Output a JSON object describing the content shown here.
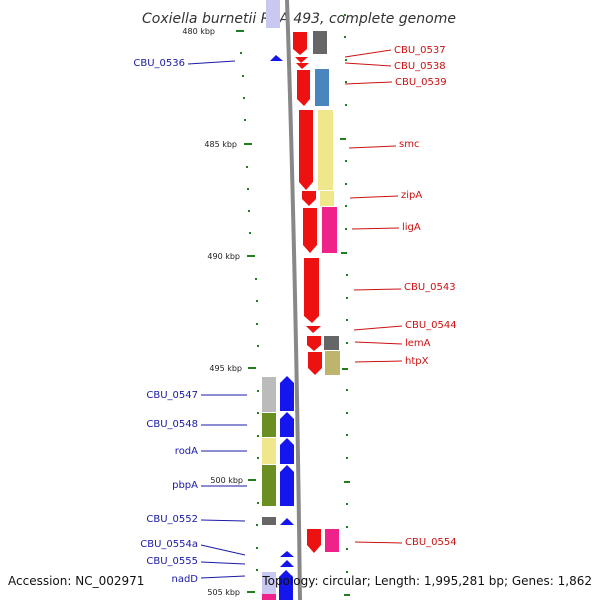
{
  "title": "Coxiella burnetii RSA 493, complete genome",
  "footer": {
    "accession": "Accession: NC_002971",
    "summary": "Topology: circular; Length: 1,995,281 bp; Genes: 1,862"
  },
  "scale": {
    "ticks": [
      "480 kbp",
      "485 kbp",
      "490 kbp",
      "495 kbp",
      "500 kbp",
      "505 kbp"
    ]
  },
  "colors": {
    "forward_strand": "#ee1111",
    "reverse_strand": "#1515ee",
    "backbone": "#888888",
    "tick_green": "#1f7f1f",
    "cog_gray": "#666666",
    "cog_steelblue": "#4a86bd",
    "cog_khaki": "#f0e68c",
    "cog_pink": "#ee2288",
    "cog_olive": "#6b8e23",
    "cog_silver": "#bbbbbb",
    "cog_darkkhaki": "#bdb56b"
  },
  "genes_left": [
    {
      "name": "CBU_0536"
    },
    {
      "name": "CBU_0547"
    },
    {
      "name": "CBU_0548"
    },
    {
      "name": "rodA"
    },
    {
      "name": "pbpA"
    },
    {
      "name": "CBU_0552"
    },
    {
      "name": "CBU_0554a"
    },
    {
      "name": "CBU_0555"
    },
    {
      "name": "nadD"
    }
  ],
  "genes_right": [
    {
      "name": "CBU_0537"
    },
    {
      "name": "CBU_0538"
    },
    {
      "name": "CBU_0539"
    },
    {
      "name": "smc"
    },
    {
      "name": "zipA"
    },
    {
      "name": "ligA"
    },
    {
      "name": "CBU_0543"
    },
    {
      "name": "CBU_0544"
    },
    {
      "name": "lemA"
    },
    {
      "name": "htpX"
    },
    {
      "name": "CBU_0554"
    }
  ]
}
